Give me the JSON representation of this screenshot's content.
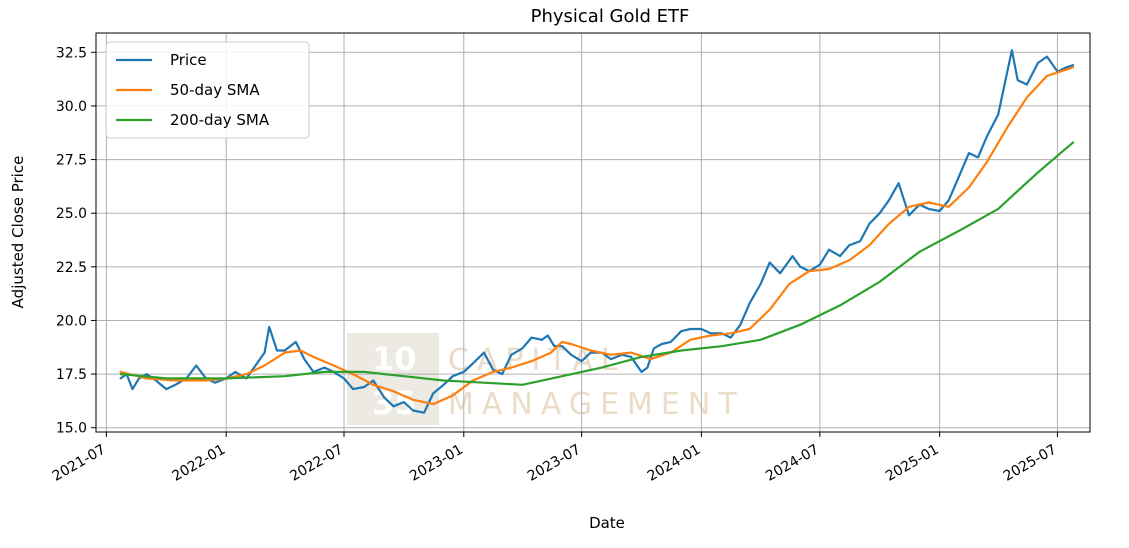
{
  "chart_data": {
    "type": "line",
    "title": "Physical Gold ETF",
    "xlabel": "Date",
    "ylabel": "Adjusted Close Price",
    "xlim": [
      "2021-06-15",
      "2025-08-20"
    ],
    "ylim": [
      14.8,
      33.4
    ],
    "x_ticks": [
      "2021-07",
      "2022-01",
      "2022-07",
      "2023-01",
      "2023-07",
      "2024-01",
      "2024-07",
      "2025-01",
      "2025-07"
    ],
    "y_ticks": [
      "15.0",
      "17.5",
      "20.0",
      "22.5",
      "25.0",
      "27.5",
      "30.0",
      "32.5"
    ],
    "grid": true,
    "legend_position": "upper-left",
    "watermark": {
      "line1": "10",
      "line2": "35",
      "text1": "CAPITAL",
      "text2": "MANAGEMENT"
    },
    "series": [
      {
        "name": "Price",
        "color": "#1f77b4",
        "points": [
          [
            "2021-07-23",
            17.3
          ],
          [
            "2021-08-01",
            17.5
          ],
          [
            "2021-08-10",
            16.8
          ],
          [
            "2021-08-20",
            17.3
          ],
          [
            "2021-09-01",
            17.5
          ],
          [
            "2021-09-15",
            17.2
          ],
          [
            "2021-10-01",
            16.8
          ],
          [
            "2021-10-15",
            17.0
          ],
          [
            "2021-11-01",
            17.3
          ],
          [
            "2021-11-16",
            17.9
          ],
          [
            "2021-12-01",
            17.3
          ],
          [
            "2021-12-15",
            17.1
          ],
          [
            "2022-01-01",
            17.3
          ],
          [
            "2022-01-15",
            17.6
          ],
          [
            "2022-02-01",
            17.3
          ],
          [
            "2022-02-15",
            17.9
          ],
          [
            "2022-03-01",
            18.5
          ],
          [
            "2022-03-08",
            19.7
          ],
          [
            "2022-03-20",
            18.6
          ],
          [
            "2022-04-01",
            18.6
          ],
          [
            "2022-04-18",
            19.0
          ],
          [
            "2022-05-01",
            18.2
          ],
          [
            "2022-05-15",
            17.6
          ],
          [
            "2022-06-01",
            17.8
          ],
          [
            "2022-06-15",
            17.6
          ],
          [
            "2022-07-01",
            17.3
          ],
          [
            "2022-07-15",
            16.8
          ],
          [
            "2022-08-01",
            16.9
          ],
          [
            "2022-08-15",
            17.2
          ],
          [
            "2022-09-01",
            16.4
          ],
          [
            "2022-09-15",
            16.0
          ],
          [
            "2022-10-01",
            16.2
          ],
          [
            "2022-10-15",
            15.8
          ],
          [
            "2022-11-01",
            15.7
          ],
          [
            "2022-11-15",
            16.6
          ],
          [
            "2022-12-01",
            17.0
          ],
          [
            "2022-12-15",
            17.4
          ],
          [
            "2023-01-01",
            17.6
          ],
          [
            "2023-01-15",
            18.0
          ],
          [
            "2023-02-01",
            18.5
          ],
          [
            "2023-02-15",
            17.7
          ],
          [
            "2023-03-01",
            17.5
          ],
          [
            "2023-03-15",
            18.4
          ],
          [
            "2023-04-01",
            18.7
          ],
          [
            "2023-04-15",
            19.2
          ],
          [
            "2023-05-01",
            19.1
          ],
          [
            "2023-05-10",
            19.3
          ],
          [
            "2023-05-20",
            18.8
          ],
          [
            "2023-06-01",
            18.8
          ],
          [
            "2023-06-15",
            18.4
          ],
          [
            "2023-07-01",
            18.1
          ],
          [
            "2023-07-15",
            18.5
          ],
          [
            "2023-08-01",
            18.5
          ],
          [
            "2023-08-15",
            18.2
          ],
          [
            "2023-09-01",
            18.4
          ],
          [
            "2023-09-15",
            18.3
          ],
          [
            "2023-10-01",
            17.6
          ],
          [
            "2023-10-10",
            17.8
          ],
          [
            "2023-10-20",
            18.7
          ],
          [
            "2023-11-01",
            18.9
          ],
          [
            "2023-11-15",
            19.0
          ],
          [
            "2023-12-01",
            19.5
          ],
          [
            "2023-12-15",
            19.6
          ],
          [
            "2024-01-01",
            19.6
          ],
          [
            "2024-01-15",
            19.4
          ],
          [
            "2024-02-01",
            19.4
          ],
          [
            "2024-02-15",
            19.2
          ],
          [
            "2024-03-01",
            19.8
          ],
          [
            "2024-03-15",
            20.8
          ],
          [
            "2024-04-01",
            21.7
          ],
          [
            "2024-04-15",
            22.7
          ],
          [
            "2024-05-01",
            22.2
          ],
          [
            "2024-05-20",
            23.0
          ],
          [
            "2024-06-01",
            22.5
          ],
          [
            "2024-06-15",
            22.3
          ],
          [
            "2024-07-01",
            22.6
          ],
          [
            "2024-07-15",
            23.3
          ],
          [
            "2024-08-01",
            23.0
          ],
          [
            "2024-08-15",
            23.5
          ],
          [
            "2024-09-01",
            23.7
          ],
          [
            "2024-09-15",
            24.5
          ],
          [
            "2024-10-01",
            25.0
          ],
          [
            "2024-10-15",
            25.6
          ],
          [
            "2024-10-30",
            26.4
          ],
          [
            "2024-11-15",
            24.9
          ],
          [
            "2024-12-01",
            25.4
          ],
          [
            "2024-12-15",
            25.2
          ],
          [
            "2025-01-01",
            25.1
          ],
          [
            "2025-01-15",
            25.6
          ],
          [
            "2025-02-01",
            26.8
          ],
          [
            "2025-02-15",
            27.8
          ],
          [
            "2025-03-01",
            27.6
          ],
          [
            "2025-03-15",
            28.6
          ],
          [
            "2025-04-01",
            29.6
          ],
          [
            "2025-04-15",
            31.6
          ],
          [
            "2025-04-22",
            32.6
          ],
          [
            "2025-05-01",
            31.2
          ],
          [
            "2025-05-15",
            31.0
          ],
          [
            "2025-06-01",
            32.0
          ],
          [
            "2025-06-15",
            32.3
          ],
          [
            "2025-07-01",
            31.6
          ],
          [
            "2025-07-15",
            31.8
          ],
          [
            "2025-07-25",
            31.9
          ]
        ]
      },
      {
        "name": "50-day SMA",
        "color": "#ff7f0e",
        "points": [
          [
            "2021-07-23",
            17.6
          ],
          [
            "2021-09-01",
            17.3
          ],
          [
            "2021-10-15",
            17.2
          ],
          [
            "2021-12-01",
            17.2
          ],
          [
            "2022-01-01",
            17.3
          ],
          [
            "2022-02-01",
            17.5
          ],
          [
            "2022-03-01",
            17.9
          ],
          [
            "2022-04-01",
            18.5
          ],
          [
            "2022-04-25",
            18.6
          ],
          [
            "2022-05-15",
            18.3
          ],
          [
            "2022-06-15",
            17.9
          ],
          [
            "2022-07-15",
            17.5
          ],
          [
            "2022-08-15",
            17.0
          ],
          [
            "2022-09-15",
            16.7
          ],
          [
            "2022-10-15",
            16.3
          ],
          [
            "2022-11-15",
            16.1
          ],
          [
            "2022-12-15",
            16.5
          ],
          [
            "2023-01-15",
            17.2
          ],
          [
            "2023-02-15",
            17.6
          ],
          [
            "2023-03-15",
            17.8
          ],
          [
            "2023-04-15",
            18.1
          ],
          [
            "2023-05-15",
            18.5
          ],
          [
            "2023-06-01",
            19.0
          ],
          [
            "2023-06-15",
            18.9
          ],
          [
            "2023-07-15",
            18.6
          ],
          [
            "2023-08-15",
            18.4
          ],
          [
            "2023-09-15",
            18.5
          ],
          [
            "2023-10-15",
            18.2
          ],
          [
            "2023-11-15",
            18.5
          ],
          [
            "2023-12-15",
            19.1
          ],
          [
            "2024-01-15",
            19.3
          ],
          [
            "2024-02-15",
            19.4
          ],
          [
            "2024-03-15",
            19.6
          ],
          [
            "2024-04-15",
            20.5
          ],
          [
            "2024-05-15",
            21.7
          ],
          [
            "2024-06-15",
            22.3
          ],
          [
            "2024-07-15",
            22.4
          ],
          [
            "2024-08-15",
            22.8
          ],
          [
            "2024-09-15",
            23.5
          ],
          [
            "2024-10-15",
            24.5
          ],
          [
            "2024-11-15",
            25.3
          ],
          [
            "2024-12-15",
            25.5
          ],
          [
            "2025-01-15",
            25.3
          ],
          [
            "2025-02-15",
            26.2
          ],
          [
            "2025-03-15",
            27.4
          ],
          [
            "2025-04-15",
            29.0
          ],
          [
            "2025-05-15",
            30.4
          ],
          [
            "2025-06-15",
            31.4
          ],
          [
            "2025-07-25",
            31.8
          ]
        ]
      },
      {
        "name": "200-day SMA",
        "color": "#2ca02c",
        "points": [
          [
            "2021-07-23",
            17.5
          ],
          [
            "2021-10-01",
            17.3
          ],
          [
            "2022-01-01",
            17.3
          ],
          [
            "2022-04-01",
            17.4
          ],
          [
            "2022-06-01",
            17.6
          ],
          [
            "2022-08-01",
            17.6
          ],
          [
            "2022-10-01",
            17.4
          ],
          [
            "2022-12-01",
            17.2
          ],
          [
            "2023-02-01",
            17.1
          ],
          [
            "2023-04-01",
            17.0
          ],
          [
            "2023-06-01",
            17.4
          ],
          [
            "2023-08-01",
            17.8
          ],
          [
            "2023-10-01",
            18.3
          ],
          [
            "2023-12-01",
            18.6
          ],
          [
            "2024-02-01",
            18.8
          ],
          [
            "2024-04-01",
            19.1
          ],
          [
            "2024-06-01",
            19.8
          ],
          [
            "2024-08-01",
            20.7
          ],
          [
            "2024-10-01",
            21.8
          ],
          [
            "2024-12-01",
            23.2
          ],
          [
            "2025-02-01",
            24.2
          ],
          [
            "2025-04-01",
            25.2
          ],
          [
            "2025-06-01",
            26.9
          ],
          [
            "2025-07-25",
            28.3
          ]
        ]
      }
    ]
  }
}
